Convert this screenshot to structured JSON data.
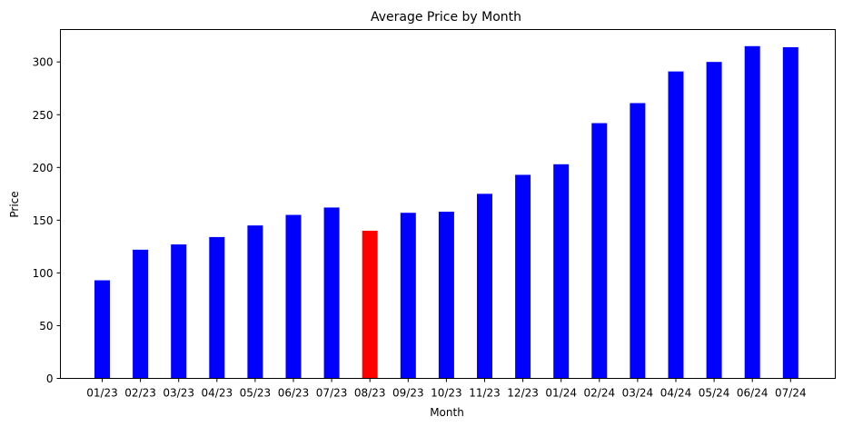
{
  "chart_data": {
    "type": "bar",
    "title": "Average Price by Month",
    "xlabel": "Month",
    "ylabel": "Price",
    "categories": [
      "01/23",
      "02/23",
      "03/23",
      "04/23",
      "05/23",
      "06/23",
      "07/23",
      "08/23",
      "09/23",
      "10/23",
      "11/23",
      "12/23",
      "01/24",
      "02/24",
      "03/24",
      "04/24",
      "05/24",
      "06/24",
      "07/24"
    ],
    "values": [
      93,
      122,
      127,
      134,
      145,
      155,
      162,
      140,
      157,
      158,
      175,
      193,
      203,
      242,
      261,
      291,
      300,
      315,
      314
    ],
    "bar_colors": [
      "#0000ff",
      "#0000ff",
      "#0000ff",
      "#0000ff",
      "#0000ff",
      "#0000ff",
      "#0000ff",
      "#ff0000",
      "#0000ff",
      "#0000ff",
      "#0000ff",
      "#0000ff",
      "#0000ff",
      "#0000ff",
      "#0000ff",
      "#0000ff",
      "#0000ff",
      "#0000ff",
      "#0000ff"
    ],
    "yticks": [
      0,
      50,
      100,
      150,
      200,
      250,
      300
    ],
    "ylim": [
      0,
      330.75
    ],
    "grid": false,
    "legend": "none"
  }
}
